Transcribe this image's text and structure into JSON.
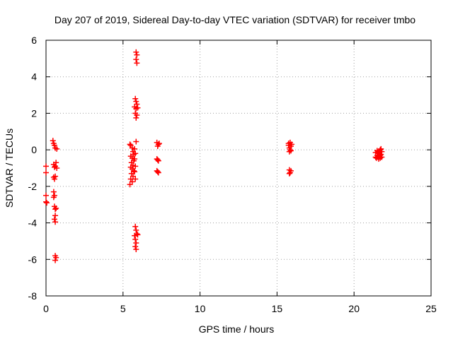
{
  "chart_data": {
    "type": "scatter",
    "title": "Day 207 of 2019, Sidereal Day-to-day VTEC variation (SDTVAR) for receiver tmbo",
    "xlabel": "GPS time / hours",
    "ylabel": "SDTVAR / TECUs",
    "xlim": [
      0,
      25
    ],
    "ylim": [
      -8,
      6
    ],
    "xticks": [
      "0",
      "5",
      "10",
      "15",
      "20",
      "25"
    ],
    "yticks": [
      "-8",
      "-6",
      "-4",
      "-2",
      "0",
      "2",
      "4",
      "6"
    ],
    "grid": true,
    "marker": "+",
    "color": "#ff0000",
    "series": [
      {
        "name": "tmbo",
        "points": [
          [
            0.0,
            -0.9
          ],
          [
            0.0,
            -1.25
          ],
          [
            0.0,
            -2.5
          ],
          [
            0.0,
            -2.85
          ],
          [
            0.05,
            -2.9
          ],
          [
            0.45,
            0.5
          ],
          [
            0.5,
            0.35
          ],
          [
            0.55,
            0.25
          ],
          [
            0.6,
            0.1
          ],
          [
            0.7,
            0.05
          ],
          [
            0.5,
            -0.8
          ],
          [
            0.6,
            -0.9
          ],
          [
            0.7,
            -1.0
          ],
          [
            0.55,
            -0.95
          ],
          [
            0.65,
            -0.7
          ],
          [
            0.5,
            -1.5
          ],
          [
            0.55,
            -1.6
          ],
          [
            0.6,
            -1.45
          ],
          [
            0.5,
            -2.3
          ],
          [
            0.55,
            -2.5
          ],
          [
            0.5,
            -2.6
          ],
          [
            0.55,
            -3.1
          ],
          [
            0.65,
            -3.2
          ],
          [
            0.6,
            -3.25
          ],
          [
            0.6,
            -3.6
          ],
          [
            0.55,
            -3.8
          ],
          [
            0.6,
            -3.95
          ],
          [
            0.6,
            -5.8
          ],
          [
            0.65,
            -5.9
          ],
          [
            0.6,
            -6.05
          ],
          [
            5.45,
            0.3
          ],
          [
            5.5,
            0.25
          ],
          [
            5.6,
            0.1
          ],
          [
            5.65,
            -0.1
          ],
          [
            5.7,
            -0.25
          ],
          [
            5.5,
            -0.35
          ],
          [
            5.6,
            -0.45
          ],
          [
            5.7,
            -0.6
          ],
          [
            5.55,
            -0.7
          ],
          [
            5.65,
            -0.85
          ],
          [
            5.5,
            -0.95
          ],
          [
            5.6,
            -1.05
          ],
          [
            5.7,
            -1.15
          ],
          [
            5.55,
            -1.3
          ],
          [
            5.65,
            -1.45
          ],
          [
            5.5,
            -1.6
          ],
          [
            5.6,
            -1.75
          ],
          [
            5.45,
            -1.9
          ],
          [
            5.75,
            -1.2
          ],
          [
            5.8,
            -0.9
          ],
          [
            5.75,
            -0.5
          ],
          [
            5.8,
            -0.2
          ],
          [
            5.85,
            0.45
          ],
          [
            5.75,
            0.05
          ],
          [
            5.8,
            -1.6
          ],
          [
            5.85,
            5.35
          ],
          [
            5.9,
            5.2
          ],
          [
            5.85,
            4.95
          ],
          [
            5.9,
            4.75
          ],
          [
            5.8,
            2.8
          ],
          [
            5.85,
            2.65
          ],
          [
            5.9,
            2.5
          ],
          [
            5.75,
            2.35
          ],
          [
            5.85,
            2.25
          ],
          [
            5.95,
            2.3
          ],
          [
            5.9,
            1.9
          ],
          [
            5.85,
            1.75
          ],
          [
            5.8,
            2.0
          ],
          [
            5.8,
            -4.2
          ],
          [
            5.85,
            -4.4
          ],
          [
            5.9,
            -4.6
          ],
          [
            5.75,
            -4.7
          ],
          [
            5.95,
            -4.65
          ],
          [
            5.8,
            -4.9
          ],
          [
            5.85,
            -5.1
          ],
          [
            5.8,
            -5.3
          ],
          [
            5.85,
            -5.45
          ],
          [
            7.2,
            0.4
          ],
          [
            7.3,
            0.3
          ],
          [
            7.25,
            0.2
          ],
          [
            7.35,
            0.35
          ],
          [
            7.2,
            -0.5
          ],
          [
            7.3,
            -0.6
          ],
          [
            7.25,
            -0.55
          ],
          [
            7.2,
            -1.15
          ],
          [
            7.3,
            -1.25
          ],
          [
            7.25,
            -1.2
          ],
          [
            15.75,
            0.35
          ],
          [
            15.85,
            0.4
          ],
          [
            15.9,
            0.2
          ],
          [
            15.8,
            0.1
          ],
          [
            15.95,
            0.3
          ],
          [
            15.85,
            0.0
          ],
          [
            15.8,
            -0.1
          ],
          [
            15.9,
            -0.05
          ],
          [
            15.75,
            0.25
          ],
          [
            15.8,
            -1.1
          ],
          [
            15.85,
            -1.25
          ],
          [
            15.9,
            -1.15
          ],
          [
            15.8,
            -1.3
          ],
          [
            21.4,
            -0.15
          ],
          [
            21.5,
            -0.3
          ],
          [
            21.45,
            -0.45
          ],
          [
            21.55,
            -0.2
          ],
          [
            21.6,
            -0.1
          ],
          [
            21.65,
            -0.35
          ],
          [
            21.7,
            0.0
          ],
          [
            21.75,
            -0.25
          ],
          [
            21.8,
            -0.4
          ],
          [
            21.5,
            -0.05
          ],
          [
            21.6,
            -0.5
          ],
          [
            21.7,
            -0.45
          ],
          [
            21.75,
            0.05
          ],
          [
            21.55,
            -0.4
          ],
          [
            21.65,
            -0.15
          ],
          [
            21.4,
            -0.4
          ],
          [
            21.8,
            -0.1
          ],
          [
            21.7,
            -0.3
          ]
        ]
      }
    ]
  }
}
